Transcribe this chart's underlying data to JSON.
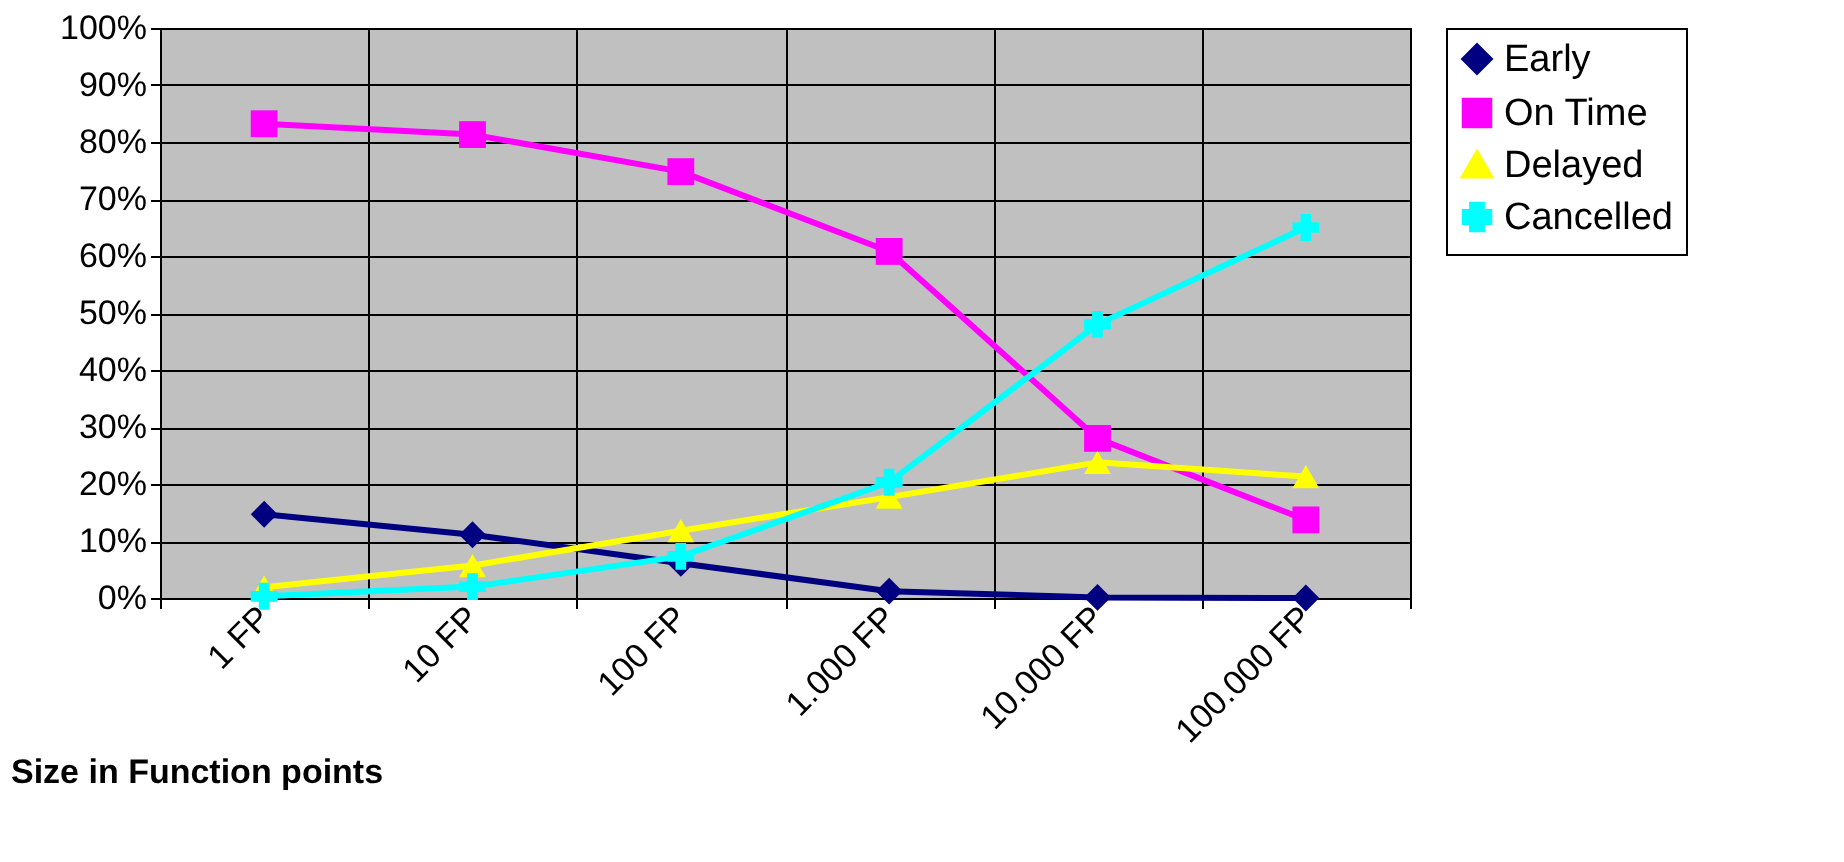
{
  "chart_data": {
    "type": "line",
    "xlabel": "Size in Function points",
    "categories": [
      "1 FP",
      "10 FP",
      "100 FP",
      "1.000 FP",
      "10.000 FP",
      "100.000 FP"
    ],
    "series": [
      {
        "name": "Early",
        "color": "#000080",
        "marker": "diamond",
        "values": [
          14.7,
          11.1,
          6.1,
          1.2,
          0.1,
          0
        ]
      },
      {
        "name": "On Time",
        "color": "#ff00ff",
        "marker": "square",
        "values": [
          83.2,
          81.3,
          74.8,
          60.8,
          28,
          13.7
        ]
      },
      {
        "name": "Delayed",
        "color": "#ffff00",
        "marker": "triangle",
        "values": [
          1.9,
          5.7,
          11.8,
          17.7,
          23.8,
          21.3
        ]
      },
      {
        "name": "Cancelled",
        "color": "#00ffff",
        "marker": "cross",
        "values": [
          0.3,
          2,
          7.3,
          20.3,
          48,
          65
        ]
      }
    ],
    "ylim": [
      0,
      100
    ],
    "yticks": [
      {
        "value": 0,
        "label": "0%"
      },
      {
        "value": 10,
        "label": "10%"
      },
      {
        "value": 20,
        "label": "20%"
      },
      {
        "value": 30,
        "label": "30%"
      },
      {
        "value": 40,
        "label": "40%"
      },
      {
        "value": 50,
        "label": "50%"
      },
      {
        "value": 60,
        "label": "60%"
      },
      {
        "value": 70,
        "label": "70%"
      },
      {
        "value": 80,
        "label": "80%"
      },
      {
        "value": 90,
        "label": "90%"
      },
      {
        "value": 100,
        "label": "100%"
      }
    ],
    "grid": true,
    "legend": "right"
  }
}
